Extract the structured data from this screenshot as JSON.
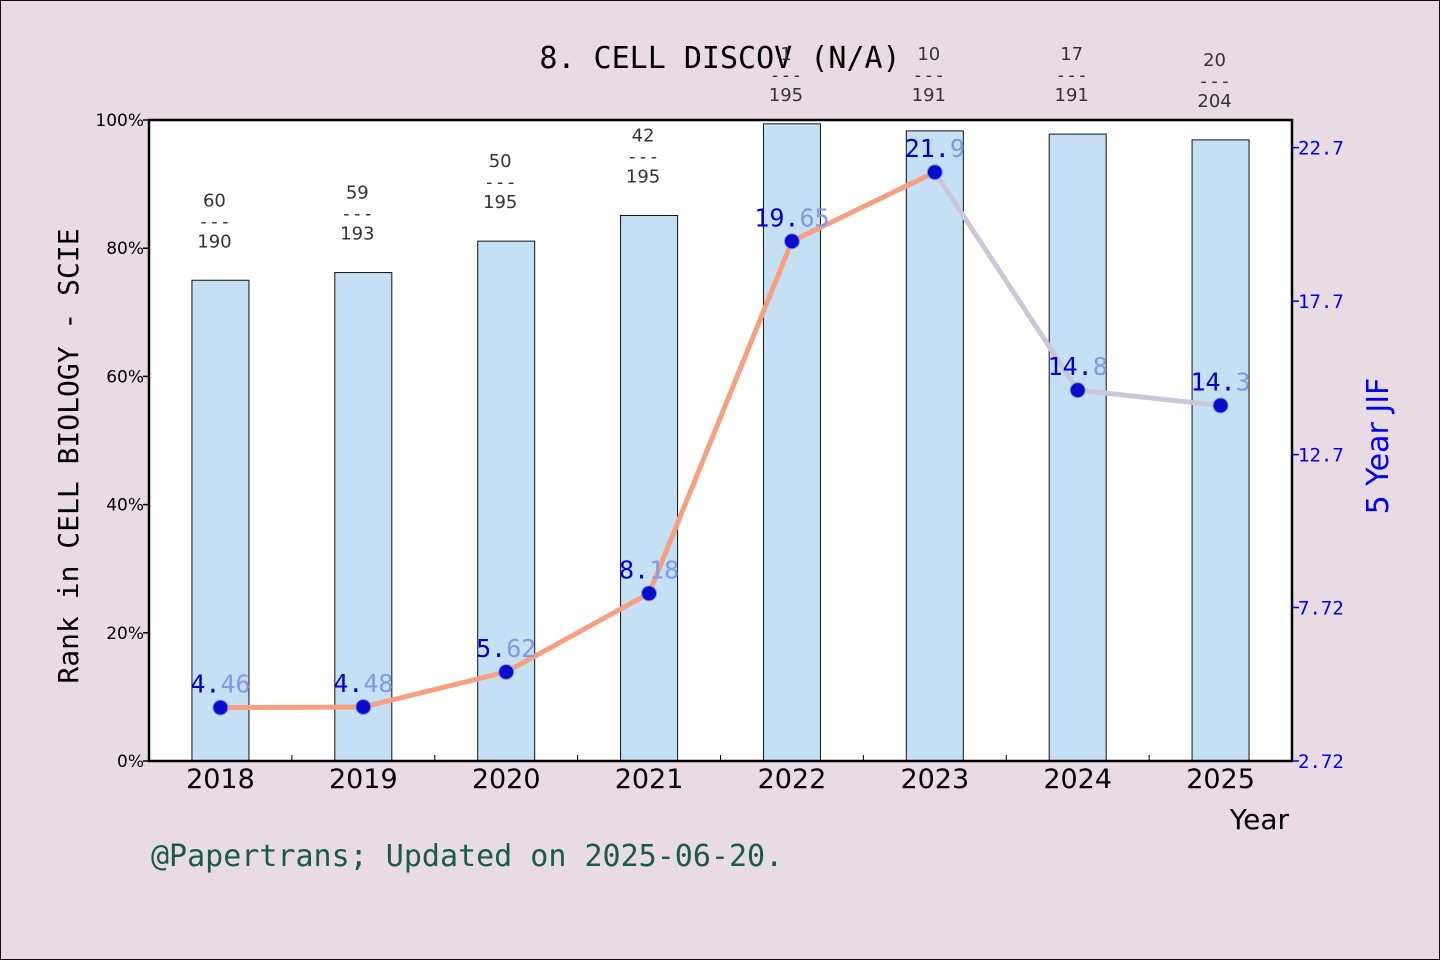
{
  "chart_data": {
    "type": "bar+line",
    "title": "8. CELL DISCOV (N/A)",
    "xlabel": "Year",
    "ylabel_left": "Rank in CELL BIOLOGY - SCIE",
    "ylabel_right": "5 Year JIF",
    "categories": [
      "2018",
      "2019",
      "2020",
      "2021",
      "2022",
      "2023",
      "2024",
      "2025"
    ],
    "rank_percentile": [
      75.0,
      76.2,
      81.1,
      85.1,
      99.4,
      98.3,
      97.8,
      96.9
    ],
    "rank_labels": [
      {
        "top": "60",
        "bottom": "190"
      },
      {
        "top": "59",
        "bottom": "193"
      },
      {
        "top": "50",
        "bottom": "195"
      },
      {
        "top": "42",
        "bottom": "195"
      },
      {
        "top": "1",
        "bottom": "195"
      },
      {
        "top": "10",
        "bottom": "191"
      },
      {
        "top": "17",
        "bottom": "191"
      },
      {
        "top": "20",
        "bottom": "204"
      }
    ],
    "rank_separator": "---",
    "jif_values": [
      4.46,
      4.48,
      5.62,
      8.18,
      19.65,
      21.9,
      14.8,
      14.3
    ],
    "jif_labels": [
      "4.46",
      "4.48",
      "5.62",
      "8.18",
      "19.65",
      "21.9",
      "14.8",
      "14.3"
    ],
    "ylim_left": [
      0,
      100
    ],
    "ylim_right": [
      2.72,
      23.6
    ],
    "left_ticks": [
      0,
      20,
      40,
      60,
      80,
      100
    ],
    "left_tick_labels": [
      "0%",
      "20%",
      "40%",
      "60%",
      "80%",
      "100%"
    ],
    "right_ticks": [
      2.72,
      7.72,
      12.7,
      17.7,
      22.7
    ],
    "right_tick_labels": [
      "2.72",
      "7.72",
      "12.7",
      "17.7",
      "22.7"
    ],
    "grid": false,
    "legend": "none"
  },
  "footer": "@Papertrans; Updated on 2025-06-20.",
  "colors": {
    "background": "#e9dbe3",
    "plot_area": "#ffffff",
    "bar_fill": "#c5dff5",
    "bar_stroke": "#111111",
    "line_rising": "#f5a080",
    "line_falling": "#c8c8d8",
    "marker": "#0b0bcc",
    "jif_label_strong": "#0000cc",
    "jif_label_light": "#7f9ae8",
    "right_axis": "#0000ee",
    "footer": "#1a5a4a",
    "rank_text": "#333333"
  }
}
